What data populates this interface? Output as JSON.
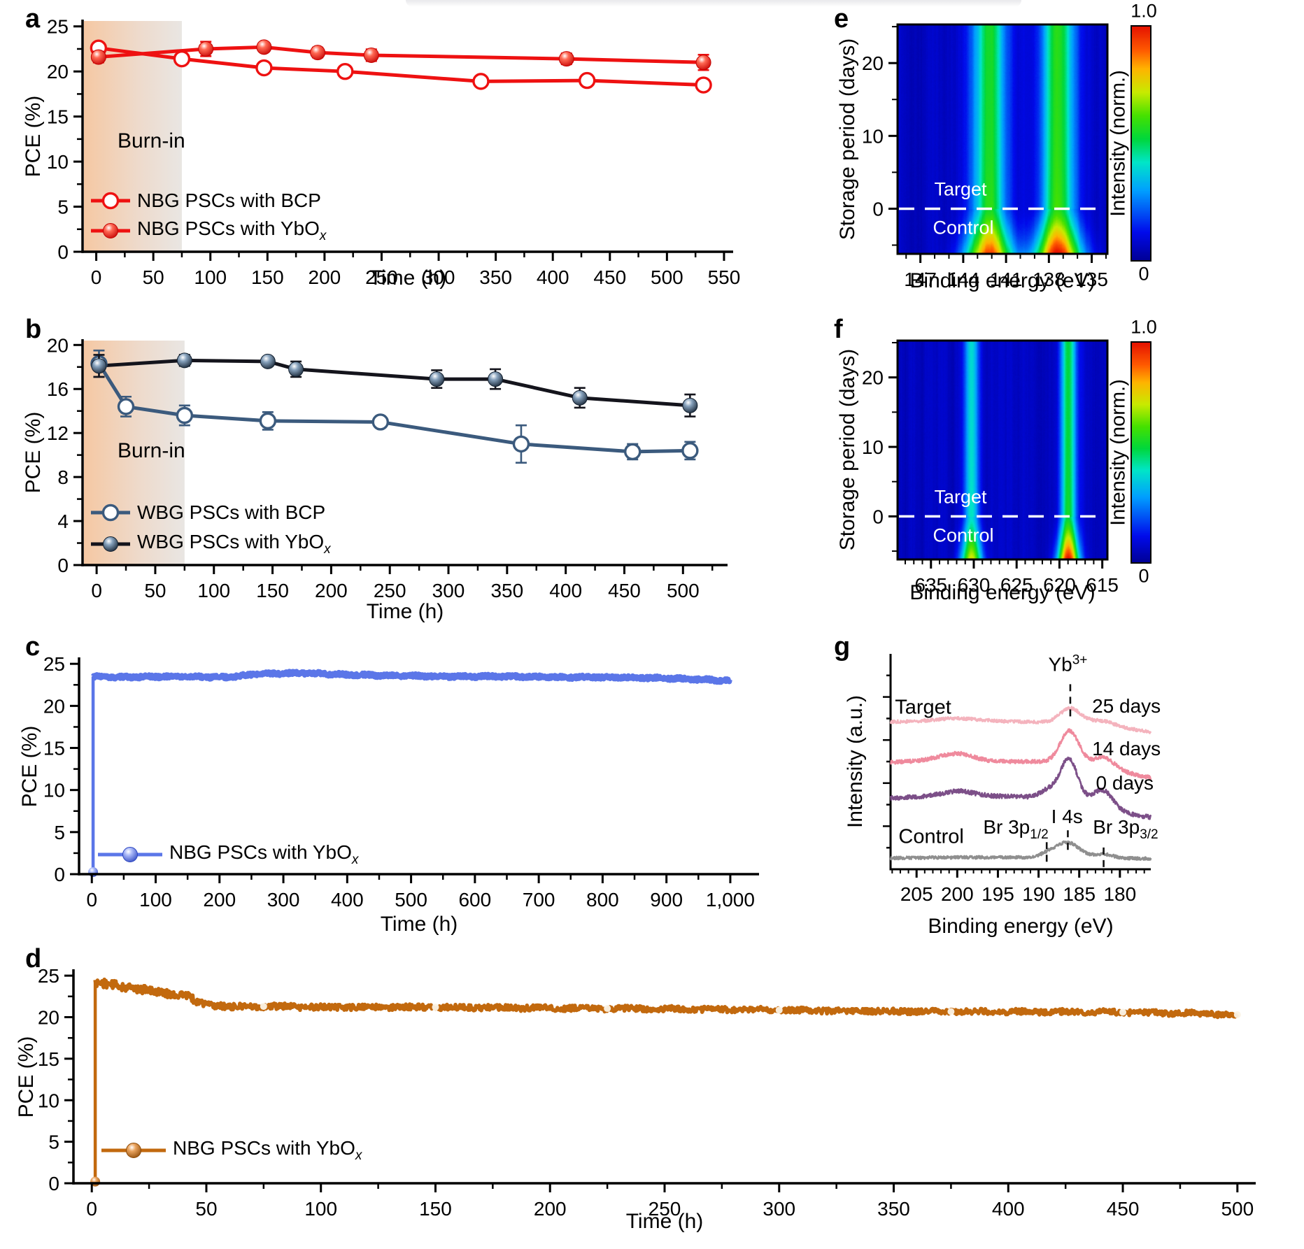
{
  "figure": {
    "background": "#ffffff",
    "panel_labels": {
      "a": "a",
      "b": "b",
      "c": "c",
      "d": "d",
      "e": "e",
      "f": "f",
      "g": "g"
    }
  },
  "chart_data": {
    "a": {
      "type": "line",
      "xlabel": "Time (h)",
      "ylabel": "PCE (%)",
      "xlim": [
        -12,
        558
      ],
      "ylim": [
        0,
        25.6
      ],
      "xticks": [
        0,
        50,
        100,
        150,
        200,
        250,
        300,
        350,
        400,
        450,
        500,
        550
      ],
      "yticks": [
        0,
        5,
        10,
        15,
        20,
        25
      ],
      "burn_in": {
        "label": "Burn-in",
        "x_end": 75,
        "colors": [
          "#f5c8a3",
          "#eedacb",
          "#e9e6e3"
        ]
      },
      "series": [
        {
          "name": "NBG PSCs with BCP",
          "name_sub": "",
          "marker": "open",
          "color": "#ee1111",
          "x": [
            2,
            75,
            147,
            218,
            337,
            430,
            532
          ],
          "y": [
            22.6,
            21.4,
            20.4,
            20.0,
            18.9,
            19.0,
            18.5
          ],
          "err": [
            0.5,
            0.3,
            0.5,
            0.5,
            0.25,
            0.45,
            0.3
          ]
        },
        {
          "name": "NBG PSCs with YbO",
          "name_sub": "x",
          "marker": "sphere",
          "color": "#ee1111",
          "sphere_colors": [
            "#ff6a55",
            "#c40000"
          ],
          "x": [
            2,
            96,
            147,
            194,
            241,
            412,
            532
          ],
          "y": [
            21.6,
            22.5,
            22.7,
            22.1,
            21.8,
            21.4,
            21.0
          ],
          "err": [
            0.6,
            0.8,
            0.45,
            0.55,
            0.65,
            0.6,
            0.85
          ]
        }
      ]
    },
    "b": {
      "type": "line",
      "xlabel": "Time (h)",
      "ylabel": "PCE (%)",
      "xlim": [
        -12,
        538
      ],
      "ylim": [
        0,
        20.4
      ],
      "xticks": [
        0,
        50,
        100,
        150,
        200,
        250,
        300,
        350,
        400,
        450,
        500
      ],
      "yticks": [
        0,
        4,
        8,
        12,
        16,
        20
      ],
      "burn_in": {
        "label": "Burn-in",
        "x_end": 75,
        "colors": [
          "#f5c8a3",
          "#eedacb",
          "#e9e6e3"
        ]
      },
      "series": [
        {
          "name": "WBG PSCs with BCP",
          "name_sub": "",
          "marker": "open",
          "color": "#3b5a7d",
          "x": [
            2,
            25,
            75,
            146,
            242,
            362,
            457,
            506
          ],
          "y": [
            18.3,
            14.4,
            13.6,
            13.1,
            13.0,
            11.0,
            10.3,
            10.4
          ],
          "err": [
            1.2,
            0.9,
            0.9,
            0.8,
            0.4,
            1.7,
            0.7,
            0.8
          ]
        },
        {
          "name": "WBG PSCs with YbO",
          "name_sub": "x",
          "marker": "sphere",
          "color": "#14141c",
          "sphere_colors": [
            "#87a2bd",
            "#121f2e"
          ],
          "x": [
            2,
            75,
            146,
            170,
            290,
            340,
            412,
            506
          ],
          "y": [
            18.1,
            18.6,
            18.5,
            17.8,
            16.9,
            16.9,
            15.2,
            14.5
          ],
          "err": [
            1.0,
            0.5,
            0.4,
            0.7,
            0.8,
            0.9,
            0.9,
            1.0
          ]
        }
      ]
    },
    "c": {
      "type": "noisy",
      "xlabel": "Time (h)",
      "ylabel": "PCE (%)",
      "xlim": [
        -20,
        1045
      ],
      "ylim": [
        0,
        25.6
      ],
      "xticks": [
        0,
        100,
        200,
        300,
        400,
        500,
        600,
        700,
        800,
        900,
        1000
      ],
      "xtick_labels": [
        "0",
        "100",
        "200",
        "300",
        "400",
        "500",
        "600",
        "700",
        "800",
        "900",
        "1,000"
      ],
      "yticks": [
        0,
        5,
        10,
        15,
        20,
        25
      ],
      "series": [
        {
          "name": "NBG PSCs with YbO",
          "name_sub": "x",
          "color": "#5b76e8",
          "sphere_colors": [
            "#a9b8f8",
            "#2e47c0"
          ],
          "envelope": [
            [
              0,
              23.5
            ],
            [
              40,
              23.4
            ],
            [
              130,
              23.5
            ],
            [
              210,
              23.4
            ],
            [
              265,
              23.8
            ],
            [
              330,
              23.9
            ],
            [
              400,
              23.7
            ],
            [
              470,
              23.6
            ],
            [
              560,
              23.5
            ],
            [
              650,
              23.5
            ],
            [
              730,
              23.4
            ],
            [
              820,
              23.4
            ],
            [
              900,
              23.3
            ],
            [
              1000,
              23.0
            ]
          ],
          "noise": [
            [
              0,
              0.22
            ],
            [
              1000,
              0.22
            ]
          ],
          "spike_x": 2,
          "spike_y0": 0.25
        }
      ]
    },
    "d": {
      "type": "noisy",
      "xlabel": "Time (h)",
      "ylabel": "PCE (%)",
      "xlim": [
        -8,
        508
      ],
      "ylim": [
        0,
        25.6
      ],
      "xticks": [
        0,
        50,
        100,
        150,
        200,
        250,
        300,
        350,
        400,
        450,
        500
      ],
      "yticks": [
        0,
        5,
        10,
        15,
        20,
        25
      ],
      "series": [
        {
          "name": "NBG PSCs with YbO",
          "name_sub": "x",
          "color": "#c2690e",
          "sphere_colors": [
            "#eaa45f",
            "#8e4a06"
          ],
          "envelope": [
            [
              0,
              24.2
            ],
            [
              6,
              24.0
            ],
            [
              14,
              23.7
            ],
            [
              22,
              23.3
            ],
            [
              30,
              23.0
            ],
            [
              38,
              22.7
            ],
            [
              42,
              22.6
            ],
            [
              45,
              21.9
            ],
            [
              52,
              21.5
            ],
            [
              62,
              21.2
            ],
            [
              75,
              21.3
            ],
            [
              100,
              21.2
            ],
            [
              150,
              21.2
            ],
            [
              200,
              21.1
            ],
            [
              250,
              21.0
            ],
            [
              300,
              20.85
            ],
            [
              350,
              20.7
            ],
            [
              400,
              20.65
            ],
            [
              450,
              20.6
            ],
            [
              480,
              20.45
            ],
            [
              500,
              20.3
            ]
          ],
          "noise": [
            [
              0,
              0.5
            ],
            [
              40,
              0.48
            ],
            [
              55,
              0.4
            ],
            [
              100,
              0.34
            ],
            [
              500,
              0.32
            ]
          ],
          "spike_x": 1.5,
          "spike_y0": 0.2,
          "white_dots_x": [
            75,
            150,
            225,
            300,
            375,
            450,
            500
          ]
        }
      ]
    },
    "e": {
      "type": "heatmap",
      "xlabel": "Binding energy (eV)",
      "ylabel": "Storage period (days)",
      "xlim": [
        148.6,
        133.9
      ],
      "ylim": [
        -6.2,
        25.3
      ],
      "xticks": [
        147,
        144,
        141,
        138,
        135
      ],
      "yticks": [
        0,
        10,
        20
      ],
      "y_minor": [
        -5,
        5,
        15,
        25
      ],
      "dashed_line_y": 0,
      "region_labels": {
        "above": "Target",
        "below": "Control"
      },
      "colorbar": {
        "label": "Intensity (norm.)",
        "top": "1.0",
        "bottom": "0"
      },
      "background_level": 0.07,
      "bands": [
        {
          "center": 142.2,
          "sigma": 0.8,
          "amp_top": 0.48,
          "amp_bottom": 0.88
        },
        {
          "center": 137.4,
          "sigma": 0.8,
          "amp_top": 0.51,
          "amp_bottom": 0.97
        }
      ]
    },
    "f": {
      "type": "heatmap",
      "xlabel": "Binding energy (eV)",
      "ylabel": "Storage period (days)",
      "xlim": [
        638.9,
        614.4
      ],
      "ylim": [
        -6.2,
        25.3
      ],
      "xticks": [
        635,
        630,
        625,
        620,
        615
      ],
      "yticks": [
        0,
        10,
        20
      ],
      "y_minor": [
        -5,
        5,
        15,
        25
      ],
      "dashed_line_y": 0,
      "region_labels": {
        "above": "Target",
        "below": "Control"
      },
      "colorbar": {
        "label": "Intensity (norm.)",
        "top": "1.0",
        "bottom": "0"
      },
      "background_level": 0.07,
      "bands": [
        {
          "center": 630.3,
          "sigma": 0.62,
          "amp_top": 0.36,
          "amp_bottom": 0.72
        },
        {
          "center": 619.0,
          "sigma": 0.62,
          "amp_top": 0.46,
          "amp_bottom": 0.97
        }
      ]
    },
    "g": {
      "type": "spectra",
      "xlabel": "Binding energy (eV)",
      "ylabel": "Intensity (a.u.)",
      "xlim": [
        208.2,
        176.2
      ],
      "xticks": [
        205,
        200,
        195,
        190,
        185,
        180
      ],
      "group_labels": {
        "target": "Target",
        "control": "Control"
      },
      "curves": [
        {
          "label": "25 days",
          "color": "#f4b3bd",
          "bg": [
            [
              176.2,
              0.638
            ],
            [
              184,
              0.678
            ],
            [
              190,
              0.683
            ],
            [
              196,
              0.687
            ],
            [
              208.2,
              0.685
            ]
          ],
          "peaks": [
            [
              200.2,
              0.014,
              2.6
            ],
            [
              186.1,
              0.068,
              1.25
            ],
            [
              182.0,
              0.02,
              1.4
            ]
          ],
          "noise": 0.0075
        },
        {
          "label": "14 days",
          "color": "#ef8a9d",
          "bg": [
            [
              176.2,
              0.425
            ],
            [
              185,
              0.492
            ],
            [
              190,
              0.5
            ],
            [
              196,
              0.5
            ],
            [
              199.5,
              0.51
            ],
            [
              202,
              0.505
            ],
            [
              208.2,
              0.497
            ]
          ],
          "peaks": [
            [
              200.3,
              0.028,
              2.2
            ],
            [
              186.2,
              0.148,
              1.15
            ],
            [
              181.9,
              0.05,
              1.25
            ]
          ],
          "noise": 0.009
        },
        {
          "label": "0 days",
          "color": "#7c4f88",
          "bg": [
            [
              176.2,
              0.242
            ],
            [
              178,
              0.25
            ],
            [
              180,
              0.27
            ],
            [
              183,
              0.31
            ],
            [
              186,
              0.33
            ],
            [
              191,
              0.336
            ],
            [
              196,
              0.34
            ],
            [
              199.8,
              0.352
            ],
            [
              203,
              0.34
            ],
            [
              208.2,
              0.33
            ]
          ],
          "peaks": [
            [
              200.0,
              0.012,
              2.0
            ],
            [
              188.8,
              0.035,
              0.95
            ],
            [
              186.3,
              0.185,
              1.05
            ],
            [
              182.0,
              0.07,
              1.15
            ]
          ],
          "noise": 0.01
        },
        {
          "label": "Control",
          "color": "#8f8f8f",
          "bg": [
            [
              176.2,
              0.05
            ],
            [
              184,
              0.052
            ],
            [
              190,
              0.055
            ],
            [
              200,
              0.055
            ],
            [
              208.2,
              0.052
            ]
          ],
          "peaks": [
            [
              189.0,
              0.012,
              0.9
            ],
            [
              186.5,
              0.072,
              1.5
            ],
            [
              182.0,
              0.018,
              1.15
            ]
          ],
          "noise": 0.007
        }
      ],
      "annotations": [
        {
          "main": "Yb",
          "sup": "3+",
          "label_x": 186.4,
          "label_y": 0.95,
          "dash_x": 186.1,
          "dash": [
            0.71,
            0.87
          ]
        },
        {
          "main": "25 days",
          "label_x": 179.2,
          "label_y": 0.755
        },
        {
          "main": "14 days",
          "label_x": 179.2,
          "label_y": 0.56
        },
        {
          "main": "0 days",
          "label_x": 179.4,
          "label_y": 0.4
        },
        {
          "main": "Br 3p",
          "sub": "1/2",
          "label_x": 192.8,
          "label_y": 0.185,
          "dash_x": 189.0,
          "dash": [
            0.035,
            0.145
          ]
        },
        {
          "main": "I 4s",
          "label_x": 186.5,
          "label_y": 0.245,
          "dash_x": 186.4,
          "dash": [
            0.09,
            0.2
          ]
        },
        {
          "main": "Br 3p",
          "sub": "3/2",
          "label_x": 179.3,
          "label_y": 0.185,
          "dash_x": 182.0,
          "dash": [
            0.01,
            0.115
          ]
        }
      ],
      "group_positions": {
        "target": {
          "x": 204.2,
          "y": 0.75
        },
        "control": {
          "x": 203.2,
          "y": 0.15
        }
      }
    }
  }
}
